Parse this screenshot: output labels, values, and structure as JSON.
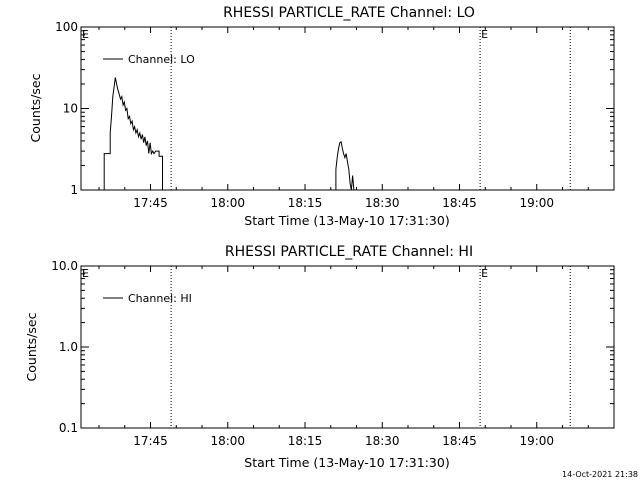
{
  "footer_timestamp": "14-Oct-2021 21:38",
  "chart_data": [
    {
      "type": "line",
      "title": "RHESSI PARTICLE_RATE Channel: LO",
      "xlabel": "Start Time (13-May-10 17:31:30)",
      "ylabel": "Counts/sec",
      "yscale": "log",
      "ylim": [
        1,
        100
      ],
      "xlim": [
        "17:31:30",
        "19:15:00"
      ],
      "x_ticks": [
        "17:45",
        "18:00",
        "18:15",
        "18:30",
        "18:45",
        "19:00"
      ],
      "y_ticks": [
        "1",
        "10",
        "100"
      ],
      "legend": {
        "entries": [
          "Channel: LO"
        ],
        "placement": "top-left"
      },
      "vertical_markers": [
        {
          "x": "17:49:00",
          "label": ""
        },
        {
          "x": "18:49:00",
          "label": "E"
        },
        {
          "x": "19:06:30",
          "label": ""
        }
      ],
      "start_marker_label": "E",
      "series": [
        {
          "name": "Channel: LO",
          "points": [
            [
              "17:36:00",
              1.0
            ],
            [
              "17:36:00",
              2.8
            ],
            [
              "17:37:10",
              2.8
            ],
            [
              "17:37:10",
              5.0
            ],
            [
              "17:37:25",
              8.0
            ],
            [
              "17:37:40",
              14.0
            ],
            [
              "17:37:55",
              18.0
            ],
            [
              "17:38:10",
              24.0
            ],
            [
              "17:38:25",
              20.0
            ],
            [
              "17:38:40",
              17.0
            ],
            [
              "17:38:55",
              15.0
            ],
            [
              "17:39:10",
              13.0
            ],
            [
              "17:39:25",
              14.0
            ],
            [
              "17:39:40",
              11.0
            ],
            [
              "17:39:55",
              12.0
            ],
            [
              "17:40:10",
              9.5
            ],
            [
              "17:40:25",
              10.0
            ],
            [
              "17:40:40",
              7.5
            ],
            [
              "17:40:55",
              8.0
            ],
            [
              "17:41:10",
              6.5
            ],
            [
              "17:41:25",
              7.0
            ],
            [
              "17:41:40",
              5.5
            ],
            [
              "17:41:55",
              6.0
            ],
            [
              "17:42:10",
              5.0
            ],
            [
              "17:42:25",
              5.5
            ],
            [
              "17:42:40",
              4.5
            ],
            [
              "17:42:55",
              5.0
            ],
            [
              "17:43:10",
              4.2
            ],
            [
              "17:43:25",
              4.8
            ],
            [
              "17:43:40",
              3.8
            ],
            [
              "17:43:55",
              4.5
            ],
            [
              "17:44:10",
              3.5
            ],
            [
              "17:44:25",
              4.0
            ],
            [
              "17:44:40",
              2.8
            ],
            [
              "17:44:55",
              3.8
            ],
            [
              "17:45:10",
              2.8
            ],
            [
              "17:45:25",
              3.0
            ],
            [
              "17:45:40",
              2.8
            ],
            [
              "17:46:00",
              3.0
            ],
            [
              "17:46:40",
              3.0
            ],
            [
              "17:46:40",
              2.6
            ],
            [
              "17:47:20",
              2.6
            ],
            [
              "17:47:20",
              1.0
            ],
            [
              "18:21:00",
              1.0
            ],
            [
              "18:21:00",
              1.8
            ],
            [
              "18:21:15",
              2.5
            ],
            [
              "18:21:30",
              3.2
            ],
            [
              "18:21:45",
              3.8
            ],
            [
              "18:22:00",
              3.9
            ],
            [
              "18:22:15",
              3.2
            ],
            [
              "18:22:30",
              2.8
            ],
            [
              "18:22:45",
              2.5
            ],
            [
              "18:23:00",
              2.8
            ],
            [
              "18:23:15",
              2.2
            ],
            [
              "18:23:30",
              1.8
            ],
            [
              "18:23:45",
              1.2
            ],
            [
              "18:24:00",
              1.0
            ],
            [
              "18:24:15",
              1.5
            ],
            [
              "18:24:30",
              1.0
            ]
          ]
        }
      ]
    },
    {
      "type": "line",
      "title": "RHESSI PARTICLE_RATE Channel: HI",
      "xlabel": "Start Time (13-May-10 17:31:30)",
      "ylabel": "Counts/sec",
      "yscale": "log",
      "ylim": [
        0.1,
        10
      ],
      "xlim": [
        "17:31:30",
        "19:15:00"
      ],
      "x_ticks": [
        "17:45",
        "18:00",
        "18:15",
        "18:30",
        "18:45",
        "19:00"
      ],
      "y_ticks": [
        "0.1",
        "1.0",
        "10.0"
      ],
      "legend": {
        "entries": [
          "Channel: HI"
        ],
        "placement": "top-left"
      },
      "vertical_markers": [
        {
          "x": "17:49:00",
          "label": ""
        },
        {
          "x": "18:49:00",
          "label": "E"
        },
        {
          "x": "19:06:30",
          "label": ""
        }
      ],
      "start_marker_label": "E",
      "series": [
        {
          "name": "Channel: HI",
          "points": []
        }
      ]
    }
  ]
}
